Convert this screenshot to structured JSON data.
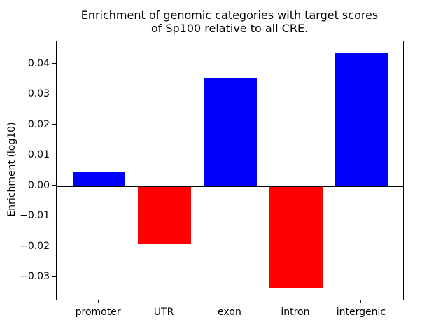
{
  "title": {
    "line1": "Enrichment of genomic categories with target scores",
    "line2": "of Sp100 relative to all CRE."
  },
  "chart_data": {
    "type": "bar",
    "title": "Enrichment of genomic categories with target scores\nof Sp100 relative to all CRE.",
    "categories": [
      "promoter",
      "UTR",
      "exon",
      "intron",
      "intergenic"
    ],
    "values": [
      0.0047,
      -0.0192,
      0.0356,
      -0.0335,
      0.0437
    ],
    "bar_colors": [
      "#0000ff",
      "#ff0000",
      "#0000ff",
      "#ff0000",
      "#0000ff"
    ],
    "positive_color": "#0000ff",
    "negative_color": "#ff0000",
    "xlabel": "",
    "ylabel": "Enrichment (log10)",
    "ylim": [
      -0.0374,
      0.0476
    ],
    "yticks": [
      0.04,
      0.03,
      0.02,
      0.01,
      0.0,
      -0.01,
      -0.02,
      -0.03
    ],
    "ytick_labels": [
      "0.04",
      "0.03",
      "0.02",
      "0.01",
      "0.00",
      "−0.01",
      "−0.02",
      "−0.03"
    ],
    "zero_line": true,
    "grid": false,
    "legend": "none",
    "bar_width_fraction": 0.8
  }
}
